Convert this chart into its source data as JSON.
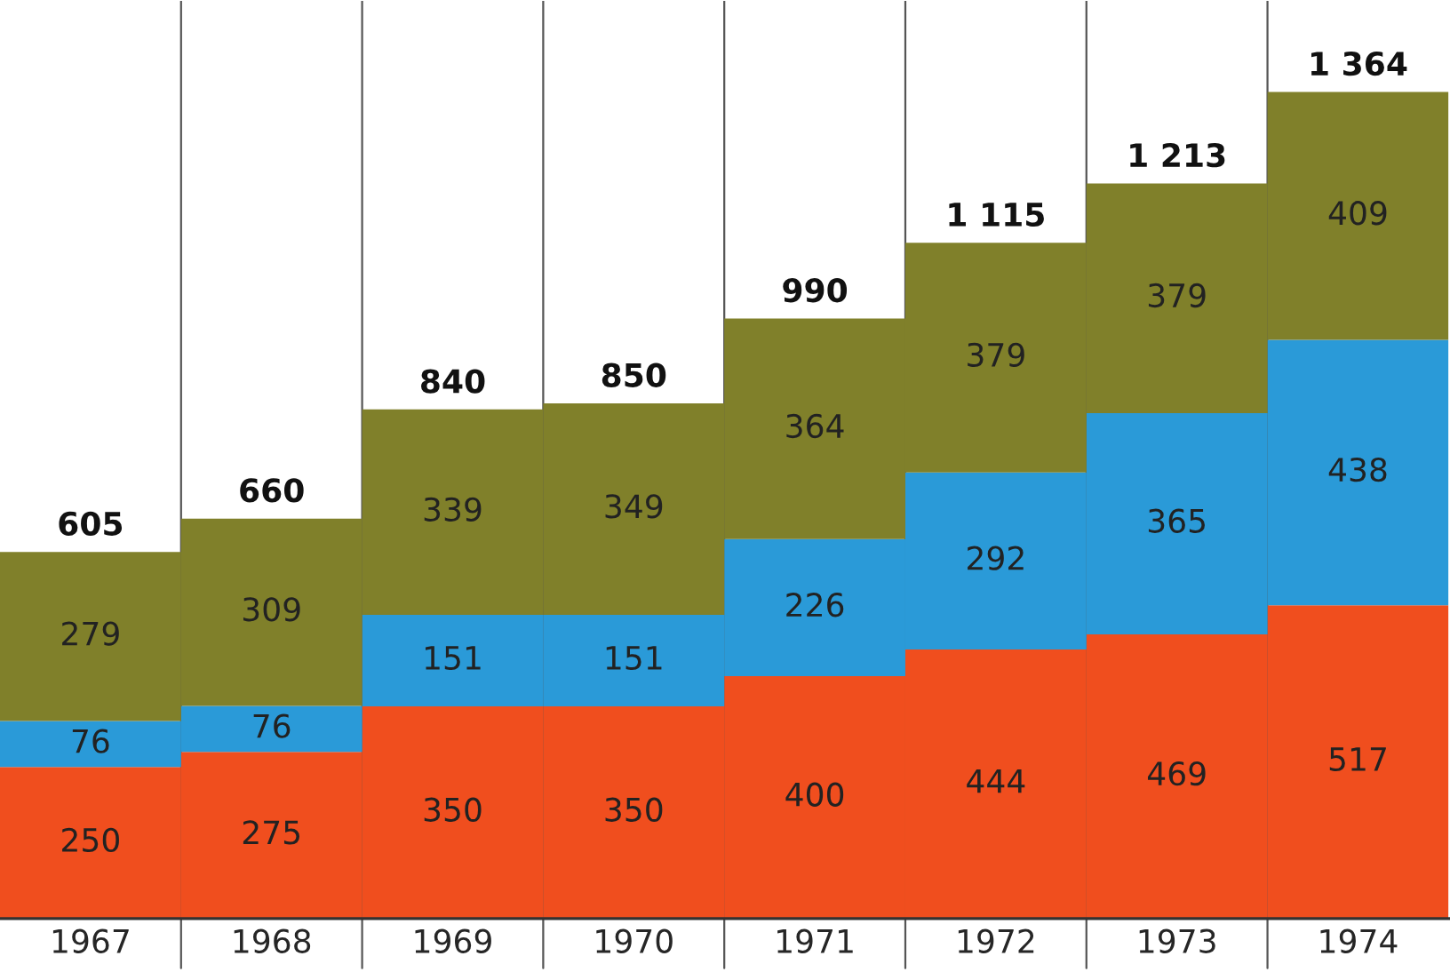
{
  "chart_data": {
    "type": "bar",
    "stacked": true,
    "data_labels": true,
    "grid": "x",
    "legend": false,
    "categories": [
      "1967",
      "1968",
      "1969",
      "1970",
      "1971",
      "1972",
      "1973",
      "1974"
    ],
    "series": [
      {
        "color": "#f04e1e",
        "values": [
          250,
          275,
          350,
          350,
          400,
          444,
          469,
          517
        ]
      },
      {
        "color": "#2a9ad8",
        "values": [
          76,
          76,
          151,
          151,
          226,
          292,
          365,
          438
        ]
      },
      {
        "color": "#80802a",
        "values": [
          279,
          309,
          339,
          349,
          364,
          379,
          379,
          409
        ]
      }
    ],
    "totals": [
      "605",
      "660",
      "840",
      "850",
      "990",
      "1 115",
      "1 213",
      "1 364"
    ]
  }
}
